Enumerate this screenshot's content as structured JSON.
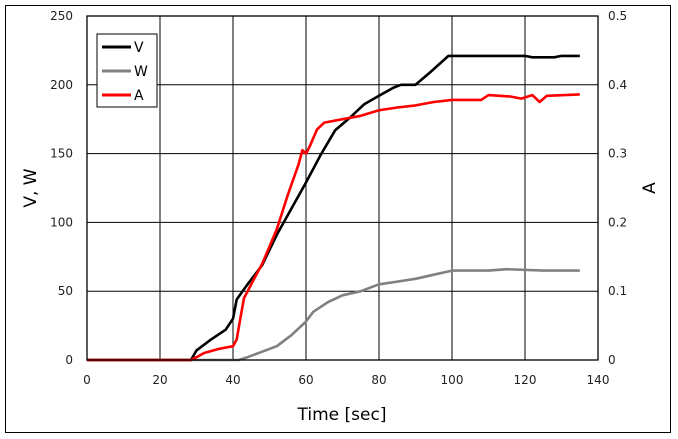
{
  "chart_data": {
    "type": "line",
    "title": "",
    "xlabel": "Time [sec]",
    "ylabel": "V, W",
    "y2label": "A",
    "xlim": [
      0,
      140
    ],
    "ylim": [
      0,
      250
    ],
    "y2lim": [
      0,
      0.5
    ],
    "xticks": [
      0,
      20,
      40,
      60,
      80,
      100,
      120,
      140
    ],
    "yticks": [
      0,
      50,
      100,
      150,
      200,
      250
    ],
    "y2ticks": [
      "0",
      "0.1",
      "0.2",
      "0.3",
      "0.4",
      "0.5"
    ],
    "grid": true,
    "legend_position": "upper-left",
    "series": [
      {
        "name": "V",
        "axis": "left",
        "color": "#000000",
        "x": [
          0,
          28.5,
          30,
          34,
          38,
          40,
          41,
          44,
          48,
          52,
          56,
          60,
          64,
          68,
          72,
          76,
          80,
          84,
          86,
          90,
          94,
          99,
          110,
          120,
          122,
          128,
          130,
          135
        ],
        "values": [
          0,
          0,
          7,
          15,
          22,
          30,
          44,
          55,
          69,
          91,
          110,
          129,
          149,
          167,
          176,
          186,
          192,
          198,
          200,
          200,
          209,
          221,
          221,
          221,
          220,
          220,
          221,
          221
        ]
      },
      {
        "name": "W",
        "axis": "left",
        "color": "#808080",
        "x": [
          0,
          41.5,
          44,
          48,
          52,
          56,
          60,
          62,
          66,
          70,
          75,
          80,
          85,
          90,
          95,
          100,
          110,
          115,
          125,
          135
        ],
        "values": [
          0,
          0,
          2,
          6,
          10,
          18,
          28,
          35,
          42,
          47,
          50,
          55,
          57,
          59,
          62,
          65,
          65,
          66,
          65,
          65
        ]
      },
      {
        "name": "A",
        "axis": "right",
        "color": "#ff0000",
        "x": [
          0,
          28.5,
          30,
          32,
          36,
          40,
          41,
          42,
          43,
          46,
          48,
          52,
          55,
          58,
          59,
          60,
          61,
          63,
          65,
          70,
          75,
          80,
          85,
          90,
          95,
          100,
          108,
          110,
          116,
          119,
          122,
          124,
          126,
          135
        ],
        "values": [
          0,
          0,
          0.004,
          0.01,
          0.016,
          0.02,
          0.03,
          0.06,
          0.09,
          0.12,
          0.14,
          0.19,
          0.24,
          0.285,
          0.305,
          0.3,
          0.31,
          0.335,
          0.345,
          0.35,
          0.355,
          0.363,
          0.367,
          0.37,
          0.375,
          0.378,
          0.378,
          0.385,
          0.383,
          0.38,
          0.385,
          0.375,
          0.384,
          0.386
        ]
      }
    ]
  },
  "legend": {
    "items": [
      "V",
      "W",
      "A"
    ]
  }
}
